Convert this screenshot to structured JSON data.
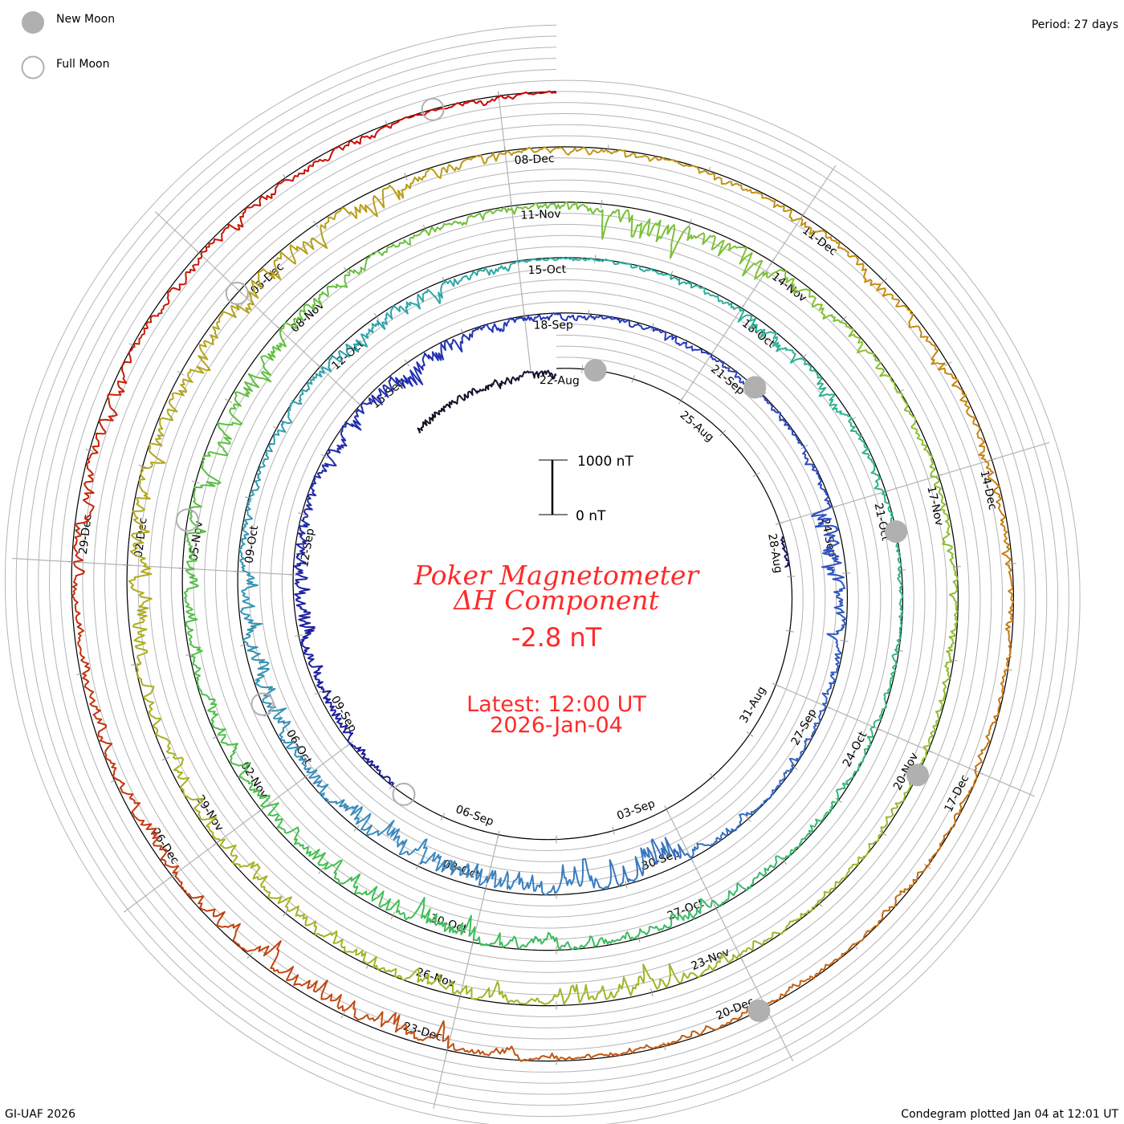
{
  "legend": {
    "new_moon": "New Moon",
    "full_moon": "Full Moon"
  },
  "period": "Period: 27 days",
  "footer_left": "GI-UAF 2026",
  "footer_right": "Condegram plotted Jan 04 at 12:01 UT",
  "center": {
    "scale_top": "1000 nT",
    "scale_bottom": "0 nT",
    "title_line1": "Poker Magnetometer",
    "title_line2": "ΔH Component",
    "current_value": "-2.8 nT",
    "latest_time": "Latest: 12:00 UT",
    "latest_date": "2026-Jan-04"
  },
  "colors": {
    "accent": "#ff2a2a",
    "grid": "#b4b4b4",
    "moon": "#b0b0b0",
    "baseline": "#000000"
  },
  "chart_data": {
    "type": "line",
    "subtype": "condegram-spiral",
    "title": "Poker Magnetometer ΔH Component",
    "period_days": 27,
    "spiral_start": "2025-08-22T12:00Z",
    "latest": "2026-01-04T12:00Z",
    "units": "nT",
    "scale_bar": [
      0,
      1000
    ],
    "date_labels": [
      [
        "22-Aug",
        "25-Aug",
        "28-Aug",
        "31-Aug",
        "03-Sep",
        "06-Sep",
        "09-Sep",
        "12-Sep",
        "15-Sep"
      ],
      [
        "18-Sep",
        "21-Sep",
        "24-Sep",
        "27-Sep",
        "30-Sep",
        "03-Oct",
        "06-Oct",
        "09-Oct",
        "12-Oct"
      ],
      [
        "15-Oct",
        "18-Oct",
        "21-Oct",
        "24-Oct",
        "27-Oct",
        "30-Oct",
        "02-Nov",
        "05-Nov",
        "08-Nov"
      ],
      [
        "11-Nov",
        "14-Nov",
        "17-Nov",
        "20-Nov",
        "23-Nov",
        "26-Nov",
        "29-Nov",
        "02-Dec",
        "05-Dec"
      ],
      [
        "08-Dec",
        "11-Dec",
        "14-Dec",
        "17-Dec",
        "20-Dec",
        "23-Dec",
        "26-Dec",
        "29-Dec"
      ]
    ],
    "new_moons": [
      "2025-08-23T06:06Z",
      "2025-09-21T19:54Z",
      "2025-10-21T12:25Z",
      "2025-11-20T06:47Z",
      "2025-12-20T01:43Z"
    ],
    "full_moons": [
      "2025-09-07T18:09Z",
      "2025-10-07T03:48Z",
      "2025-11-05T13:19Z",
      "2025-12-04T23:14Z",
      "2026-01-03T10:03Z"
    ],
    "daily_min_dH_start": "2025-09-08",
    "daily_min_dH": [
      -200,
      -300,
      -400,
      -500,
      -400,
      -300,
      -500,
      -700,
      -600,
      -300,
      -200,
      -150,
      -200,
      -150,
      -100,
      -200,
      -700,
      -500,
      -300,
      -200,
      -150,
      -300,
      -1100,
      -900,
      -700,
      -800,
      -800,
      -600,
      -500,
      -500,
      -600,
      -300,
      -200,
      -300,
      -400,
      -500,
      -300,
      -100,
      -100,
      -200,
      -500,
      -400,
      -300,
      -100,
      -100,
      -150,
      -200,
      -200,
      -300,
      -400,
      -400,
      -500,
      -700,
      -700,
      -600,
      -500,
      -400,
      -500,
      -500,
      -600,
      -600,
      -400,
      -300,
      -300,
      -300,
      -1000,
      -900,
      -400,
      -300,
      -200,
      -300,
      -300,
      -200,
      -200,
      -150,
      -200,
      -700,
      -700,
      -500,
      -500,
      -400,
      -500,
      -500,
      -400,
      -600,
      -600,
      -500,
      -700,
      -700,
      -600,
      -400,
      -200,
      -200,
      -300,
      -400,
      -400,
      -300,
      -300,
      -200,
      -150,
      -100,
      -150,
      -150,
      -200,
      -200,
      -300,
      -800,
      -800,
      -600,
      -400,
      -400,
      -300,
      -400,
      -400,
      -300,
      -300,
      -300,
      -200,
      -100
    ],
    "early_segments": [
      {
        "start": "2025-08-19T10:00Z",
        "end": "2025-08-22T12:00Z",
        "daily_min_dH": -250
      },
      {
        "start": "2025-08-28T06:00Z",
        "end": "2025-08-28T20:00Z",
        "daily_min_dH": -150
      }
    ],
    "color_stops": [
      {
        "day": -3,
        "color": "#111122"
      },
      {
        "day": 17,
        "color": "#1a1a9a"
      },
      {
        "day": 30,
        "color": "#2a40c0"
      },
      {
        "day": 42,
        "color": "#3a86c0"
      },
      {
        "day": 55,
        "color": "#2aaea0"
      },
      {
        "day": 70,
        "color": "#40bf50"
      },
      {
        "day": 85,
        "color": "#88c030"
      },
      {
        "day": 100,
        "color": "#aab020"
      },
      {
        "day": 112,
        "color": "#c88a10"
      },
      {
        "day": 125,
        "color": "#c04010"
      },
      {
        "day": 135,
        "color": "#cc0000"
      }
    ]
  }
}
